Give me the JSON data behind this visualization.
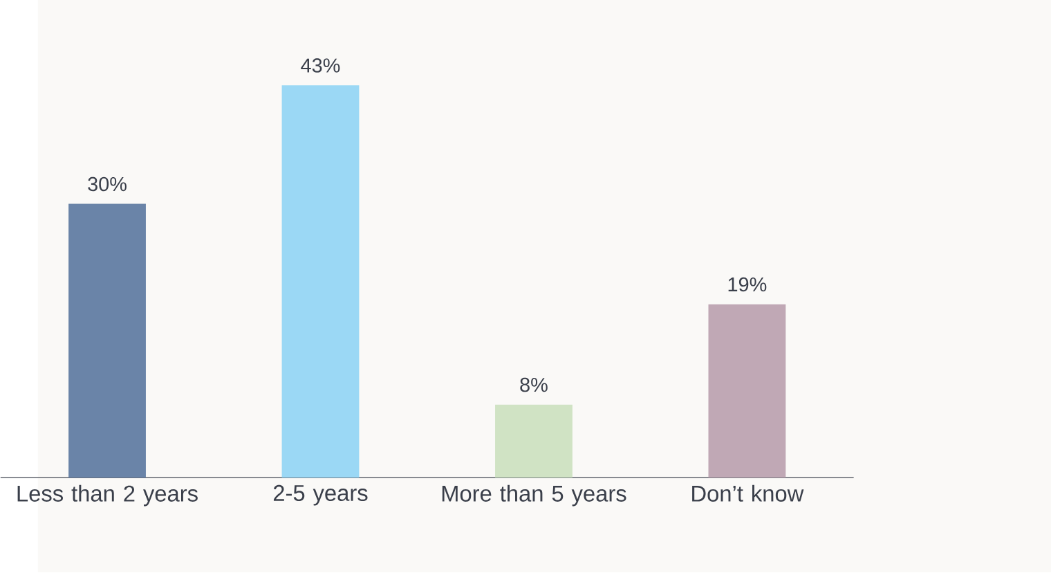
{
  "chart_data": {
    "type": "bar",
    "categories": [
      "Less than 2 years",
      "2-5 years",
      "More than 5 years",
      "Don’t know"
    ],
    "values": [
      30,
      43,
      8,
      19
    ],
    "colors": [
      "#6a84a8",
      "#9bd8f5",
      "#d0e3c4",
      "#c0a8b5"
    ],
    "data_labels": true,
    "value_labels": [
      "30%",
      "43%",
      "8%",
      "19%"
    ]
  }
}
